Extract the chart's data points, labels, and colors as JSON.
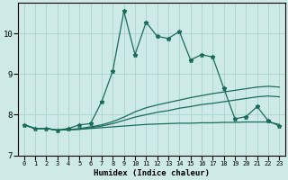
{
  "xlabel": "Humidex (Indice chaleur)",
  "background_color": "#ceeae6",
  "grid_color": "#aad4cf",
  "line_color": "#1a6b5a",
  "ylim": [
    7.0,
    10.75
  ],
  "xlim": [
    -0.5,
    23.5
  ],
  "yticks": [
    7,
    8,
    9,
    10
  ],
  "xticks": [
    0,
    1,
    2,
    3,
    4,
    5,
    6,
    7,
    8,
    9,
    10,
    11,
    12,
    13,
    14,
    15,
    16,
    17,
    18,
    19,
    20,
    21,
    22,
    23
  ],
  "curve_flat1_x": [
    0,
    1,
    2,
    3,
    4,
    5,
    6,
    7,
    8,
    9,
    10,
    11,
    12,
    13,
    14,
    15,
    16,
    17,
    18,
    19,
    20,
    21,
    22,
    23
  ],
  "curve_flat1_y": [
    7.75,
    7.66,
    7.66,
    7.62,
    7.63,
    7.64,
    7.66,
    7.68,
    7.7,
    7.72,
    7.74,
    7.76,
    7.77,
    7.78,
    7.79,
    7.79,
    7.8,
    7.8,
    7.81,
    7.81,
    7.82,
    7.82,
    7.82,
    7.76
  ],
  "curve_flat2_x": [
    0,
    1,
    2,
    3,
    4,
    5,
    6,
    7,
    8,
    9,
    10,
    11,
    12,
    13,
    14,
    15,
    16,
    17,
    18,
    19,
    20,
    21,
    22,
    23
  ],
  "curve_flat2_y": [
    7.75,
    7.66,
    7.66,
    7.62,
    7.63,
    7.64,
    7.68,
    7.72,
    7.78,
    7.86,
    7.94,
    8.0,
    8.06,
    8.1,
    8.16,
    8.2,
    8.25,
    8.28,
    8.32,
    8.36,
    8.4,
    8.44,
    8.46,
    8.44
  ],
  "curve_flat3_x": [
    0,
    1,
    2,
    3,
    4,
    5,
    6,
    7,
    8,
    9,
    10,
    11,
    12,
    13,
    14,
    15,
    16,
    17,
    18,
    19,
    20,
    21,
    22,
    23
  ],
  "curve_flat3_y": [
    7.75,
    7.66,
    7.66,
    7.62,
    7.63,
    7.66,
    7.7,
    7.75,
    7.83,
    7.94,
    8.07,
    8.17,
    8.24,
    8.3,
    8.36,
    8.42,
    8.47,
    8.52,
    8.56,
    8.6,
    8.64,
    8.68,
    8.7,
    8.68
  ],
  "curve_main_x": [
    0,
    1,
    2,
    3,
    4,
    5,
    6,
    7,
    8,
    9,
    10,
    11,
    12,
    13,
    14,
    15,
    16,
    17,
    18,
    19,
    20,
    21,
    22,
    23
  ],
  "curve_main_y": [
    7.75,
    7.66,
    7.66,
    7.62,
    7.66,
    7.75,
    7.78,
    8.32,
    9.08,
    10.55,
    9.48,
    10.28,
    9.93,
    9.88,
    10.05,
    9.35,
    9.48,
    9.42,
    8.65,
    7.9,
    7.95,
    8.2,
    7.85,
    7.72
  ],
  "marker": "*",
  "markersize": 3.5,
  "linewidth": 0.9
}
